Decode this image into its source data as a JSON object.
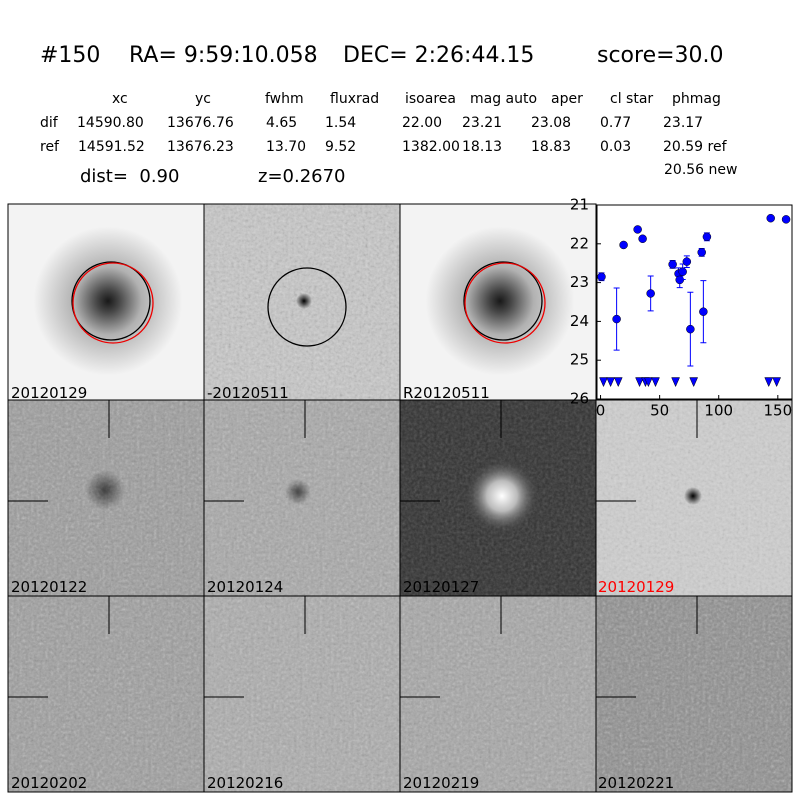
{
  "header": {
    "id": "#150",
    "ra": "RA= 9:59:10.058",
    "dec": "DEC= 2:26:44.15",
    "score": "score=30.0"
  },
  "table": {
    "columns": [
      "xc",
      "yc",
      "fwhm",
      "fluxrad",
      "isoarea",
      "mag auto",
      "aper",
      "cl star",
      "phmag"
    ],
    "rows": [
      [
        "dif",
        "14590.80",
        "13676.76",
        "4.65",
        "1.54",
        "22.00",
        "23.21",
        "23.08",
        "0.77",
        "23.17"
      ],
      [
        "ref",
        "14591.52",
        "13676.23",
        "13.70",
        "9.52",
        "1382.00",
        "18.13",
        "18.83",
        "0.03",
        "20.59 ref"
      ]
    ],
    "note": "20.56 new"
  },
  "dist": "dist=  0.90",
  "z": "z=0.2670",
  "panels": [
    "20120129",
    "-20120511",
    "R20120511",
    "20120122",
    "20120124",
    "20120127",
    "20120129",
    "20120202",
    "20120216",
    "20120219",
    "20120221"
  ],
  "chart_data": {
    "type": "scatter",
    "xlim": [
      -3,
      162
    ],
    "ylim": [
      21,
      26
    ],
    "y_inverted": true,
    "xticks": [
      0,
      50,
      100,
      150
    ],
    "yticks": [
      21,
      22,
      23,
      24,
      25,
      26
    ],
    "series": [
      {
        "color": "#0000ff",
        "marker": "circle",
        "x": [
          0.8,
          13.6,
          19.5,
          31.4,
          35.6,
          42.4,
          61,
          66,
          67,
          69.5,
          73,
          76,
          85.6,
          87,
          90,
          144,
          157
        ],
        "values": [
          22.85,
          23.94,
          22.03,
          21.63,
          21.87,
          23.28,
          22.53,
          22.77,
          22.93,
          22.72,
          22.46,
          24.2,
          22.22,
          23.75,
          21.82,
          21.34,
          21.37
        ],
        "errors": [
          0.1,
          0.8,
          0.05,
          0.05,
          0.05,
          0.45,
          0.1,
          0.15,
          0.2,
          0.2,
          0.15,
          0.95,
          0.1,
          0.8,
          0.1,
          0.05,
          0.05
        ]
      },
      {
        "color": "#0000ff",
        "marker": "triangle-down",
        "x": [
          2.5,
          8.5,
          15,
          33,
          38,
          40.5,
          46.5,
          63.5,
          78.8,
          142.3,
          149
        ],
        "values": [
          25.55,
          25.55,
          25.55,
          25.55,
          25.55,
          25.55,
          25.55,
          25.55,
          25.55,
          25.55,
          25.55
        ]
      }
    ]
  }
}
